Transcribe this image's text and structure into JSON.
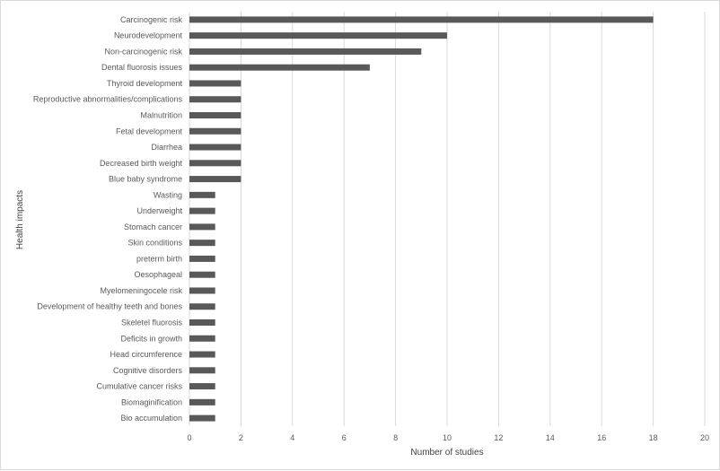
{
  "chart_data": {
    "type": "bar",
    "orientation": "horizontal",
    "title": "",
    "xlabel": "Number of studies",
    "ylabel": "Health impacts",
    "xlim": [
      0,
      20
    ],
    "xticks": [
      0,
      2,
      4,
      6,
      8,
      10,
      12,
      14,
      16,
      18,
      20
    ],
    "grid": "vertical",
    "colors": {
      "bar": "#595959",
      "grid": "#d9d9d9",
      "text": "#595959"
    },
    "categories": [
      "Carcinogenic risk",
      "Neurodevelopment",
      "Non-carcinogenic risk",
      "Dental fluorosis issues",
      "Thyroid development",
      "Reproductive abnormalities/complications",
      "Malnutrition",
      "Fetal development",
      "Diarrhea",
      "Decreased birth weight",
      "Blue baby syndrome",
      "Wasting",
      "Underweight",
      "Stomach cancer",
      "Skin conditions",
      "preterm birth",
      "Oesophageal",
      "Myelomeningocele risk",
      "Development of healthy teeth and bones",
      "Skeletel fluorosis",
      "Deficits in growth",
      "Head circumference",
      "Cognitive disorders",
      "Cumulative cancer risks",
      "Biomaginification",
      "Bio accumulation"
    ],
    "values": [
      18,
      10,
      9,
      7,
      2,
      2,
      2,
      2,
      2,
      2,
      2,
      1,
      1,
      1,
      1,
      1,
      1,
      1,
      1,
      1,
      1,
      1,
      1,
      1,
      1,
      1
    ]
  }
}
